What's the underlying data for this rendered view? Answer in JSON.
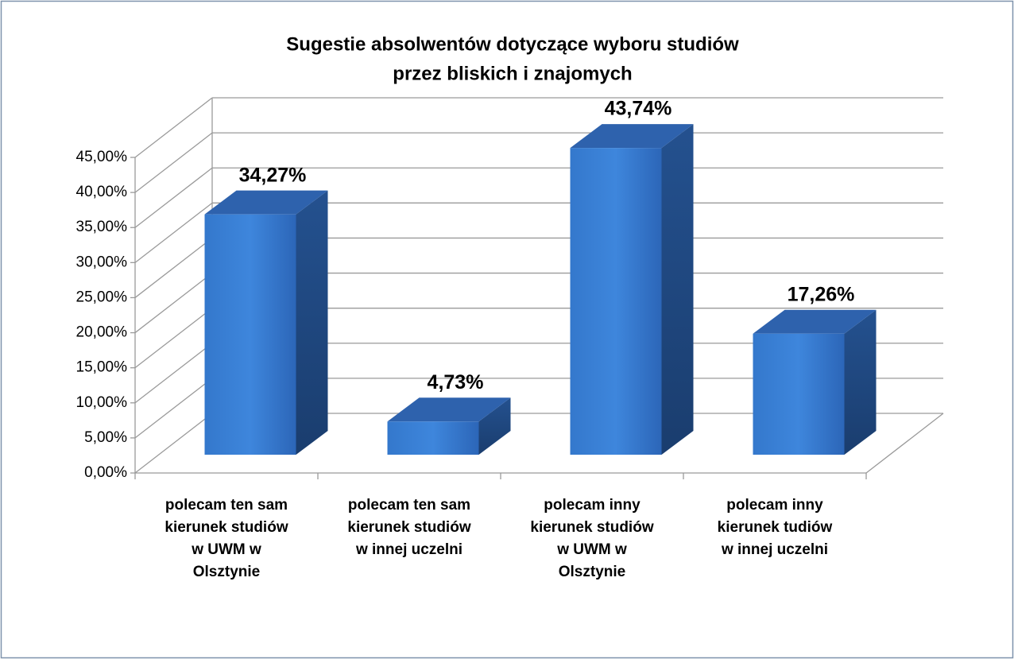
{
  "chart_data": {
    "type": "bar3d",
    "title": [
      "Sugestie absolwentów dotyczące wyboru studiów",
      "przez bliskich i znajomych"
    ],
    "categories": [
      [
        "polecam ten sam",
        "kierunek studiów",
        "w UWM w",
        "Olsztynie"
      ],
      [
        "polecam ten sam",
        "kierunek studiów",
        "w innej uczelni"
      ],
      [
        "polecam inny",
        "kierunek studiów",
        "w UWM w",
        "Olsztynie"
      ],
      [
        "polecam inny",
        "kierunek tudiów",
        "w innej uczelni"
      ]
    ],
    "values": [
      34.27,
      4.73,
      43.74,
      17.26
    ],
    "value_labels": [
      "34,27%",
      "4,73%",
      "43,74%",
      "17,26%"
    ],
    "color": "#3a7fd5",
    "ylim": [
      0,
      45
    ],
    "yticks": [
      {
        "value": 0,
        "label": "0,00%"
      },
      {
        "value": 5,
        "label": "5,00%"
      },
      {
        "value": 10,
        "label": "10,00%"
      },
      {
        "value": 15,
        "label": "15,00%"
      },
      {
        "value": 20,
        "label": "20,00%"
      },
      {
        "value": 25,
        "label": "25,00%"
      },
      {
        "value": 30,
        "label": "30,00%"
      },
      {
        "value": 35,
        "label": "35,00%"
      },
      {
        "value": 40,
        "label": "40,00%"
      },
      {
        "value": 45,
        "label": "45,00%"
      }
    ],
    "grid": true
  }
}
